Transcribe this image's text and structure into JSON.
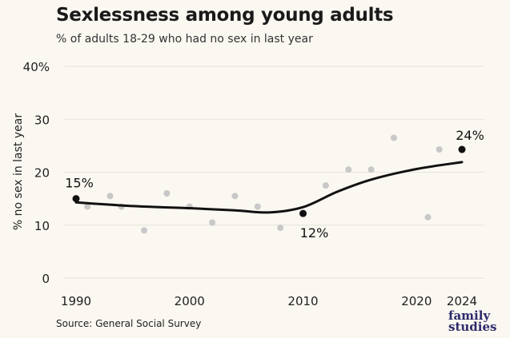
{
  "header": {
    "title": "Sexlessness among young adults",
    "subtitle": "% of adults 18-29 who had no sex in last year"
  },
  "footer": {
    "source": "Source: General Social Survey",
    "brand_line1": "family",
    "brand_line2": "studies"
  },
  "chart_data": {
    "type": "scatter",
    "ylabel": "% no sex in last year",
    "ylim": [
      0,
      40
    ],
    "yticks": [
      0,
      10,
      20,
      30,
      40
    ],
    "ytick_labels": [
      "0",
      "10",
      "20",
      "30",
      "40%"
    ],
    "xlim": [
      1990,
      2024
    ],
    "xticks": [
      1990,
      2000,
      2010,
      2020,
      2024
    ],
    "grid": true,
    "colors": {
      "points": "#c8c8c8",
      "trend": "#111111",
      "highlight": "#111111",
      "grid": "#e6e2dc"
    },
    "series": [
      {
        "values": [
          {
            "x": 1990,
            "y": 15.0
          },
          {
            "x": 1991,
            "y": 13.5
          },
          {
            "x": 1993,
            "y": 15.5
          },
          {
            "x": 1994,
            "y": 13.5
          },
          {
            "x": 1996,
            "y": 9.0
          },
          {
            "x": 1998,
            "y": 16.0
          },
          {
            "x": 2000,
            "y": 13.5
          },
          {
            "x": 2002,
            "y": 10.5
          },
          {
            "x": 2004,
            "y": 15.5
          },
          {
            "x": 2006,
            "y": 13.5
          },
          {
            "x": 2008,
            "y": 9.5
          },
          {
            "x": 2010,
            "y": 12.2
          },
          {
            "x": 2012,
            "y": 17.5
          },
          {
            "x": 2014,
            "y": 20.5
          },
          {
            "x": 2016,
            "y": 20.5
          },
          {
            "x": 2018,
            "y": 26.5
          },
          {
            "x": 2021,
            "y": 11.5
          },
          {
            "x": 2022,
            "y": 24.3
          },
          {
            "x": 2024,
            "y": 24.3
          }
        ]
      }
    ],
    "trend": [
      {
        "x": 1990,
        "y": 14.3
      },
      {
        "x": 1995,
        "y": 13.6
      },
      {
        "x": 2000,
        "y": 13.2
      },
      {
        "x": 2004,
        "y": 12.8
      },
      {
        "x": 2007,
        "y": 12.4
      },
      {
        "x": 2010,
        "y": 13.4
      },
      {
        "x": 2013,
        "y": 16.3
      },
      {
        "x": 2016,
        "y": 18.6
      },
      {
        "x": 2020,
        "y": 20.6
      },
      {
        "x": 2024,
        "y": 21.9
      }
    ],
    "highlights": [
      {
        "x": 1990,
        "y": 15.0,
        "label": "15%"
      },
      {
        "x": 2010,
        "y": 12.2,
        "label": "12%"
      },
      {
        "x": 2024,
        "y": 24.3,
        "label": "24%"
      }
    ]
  }
}
